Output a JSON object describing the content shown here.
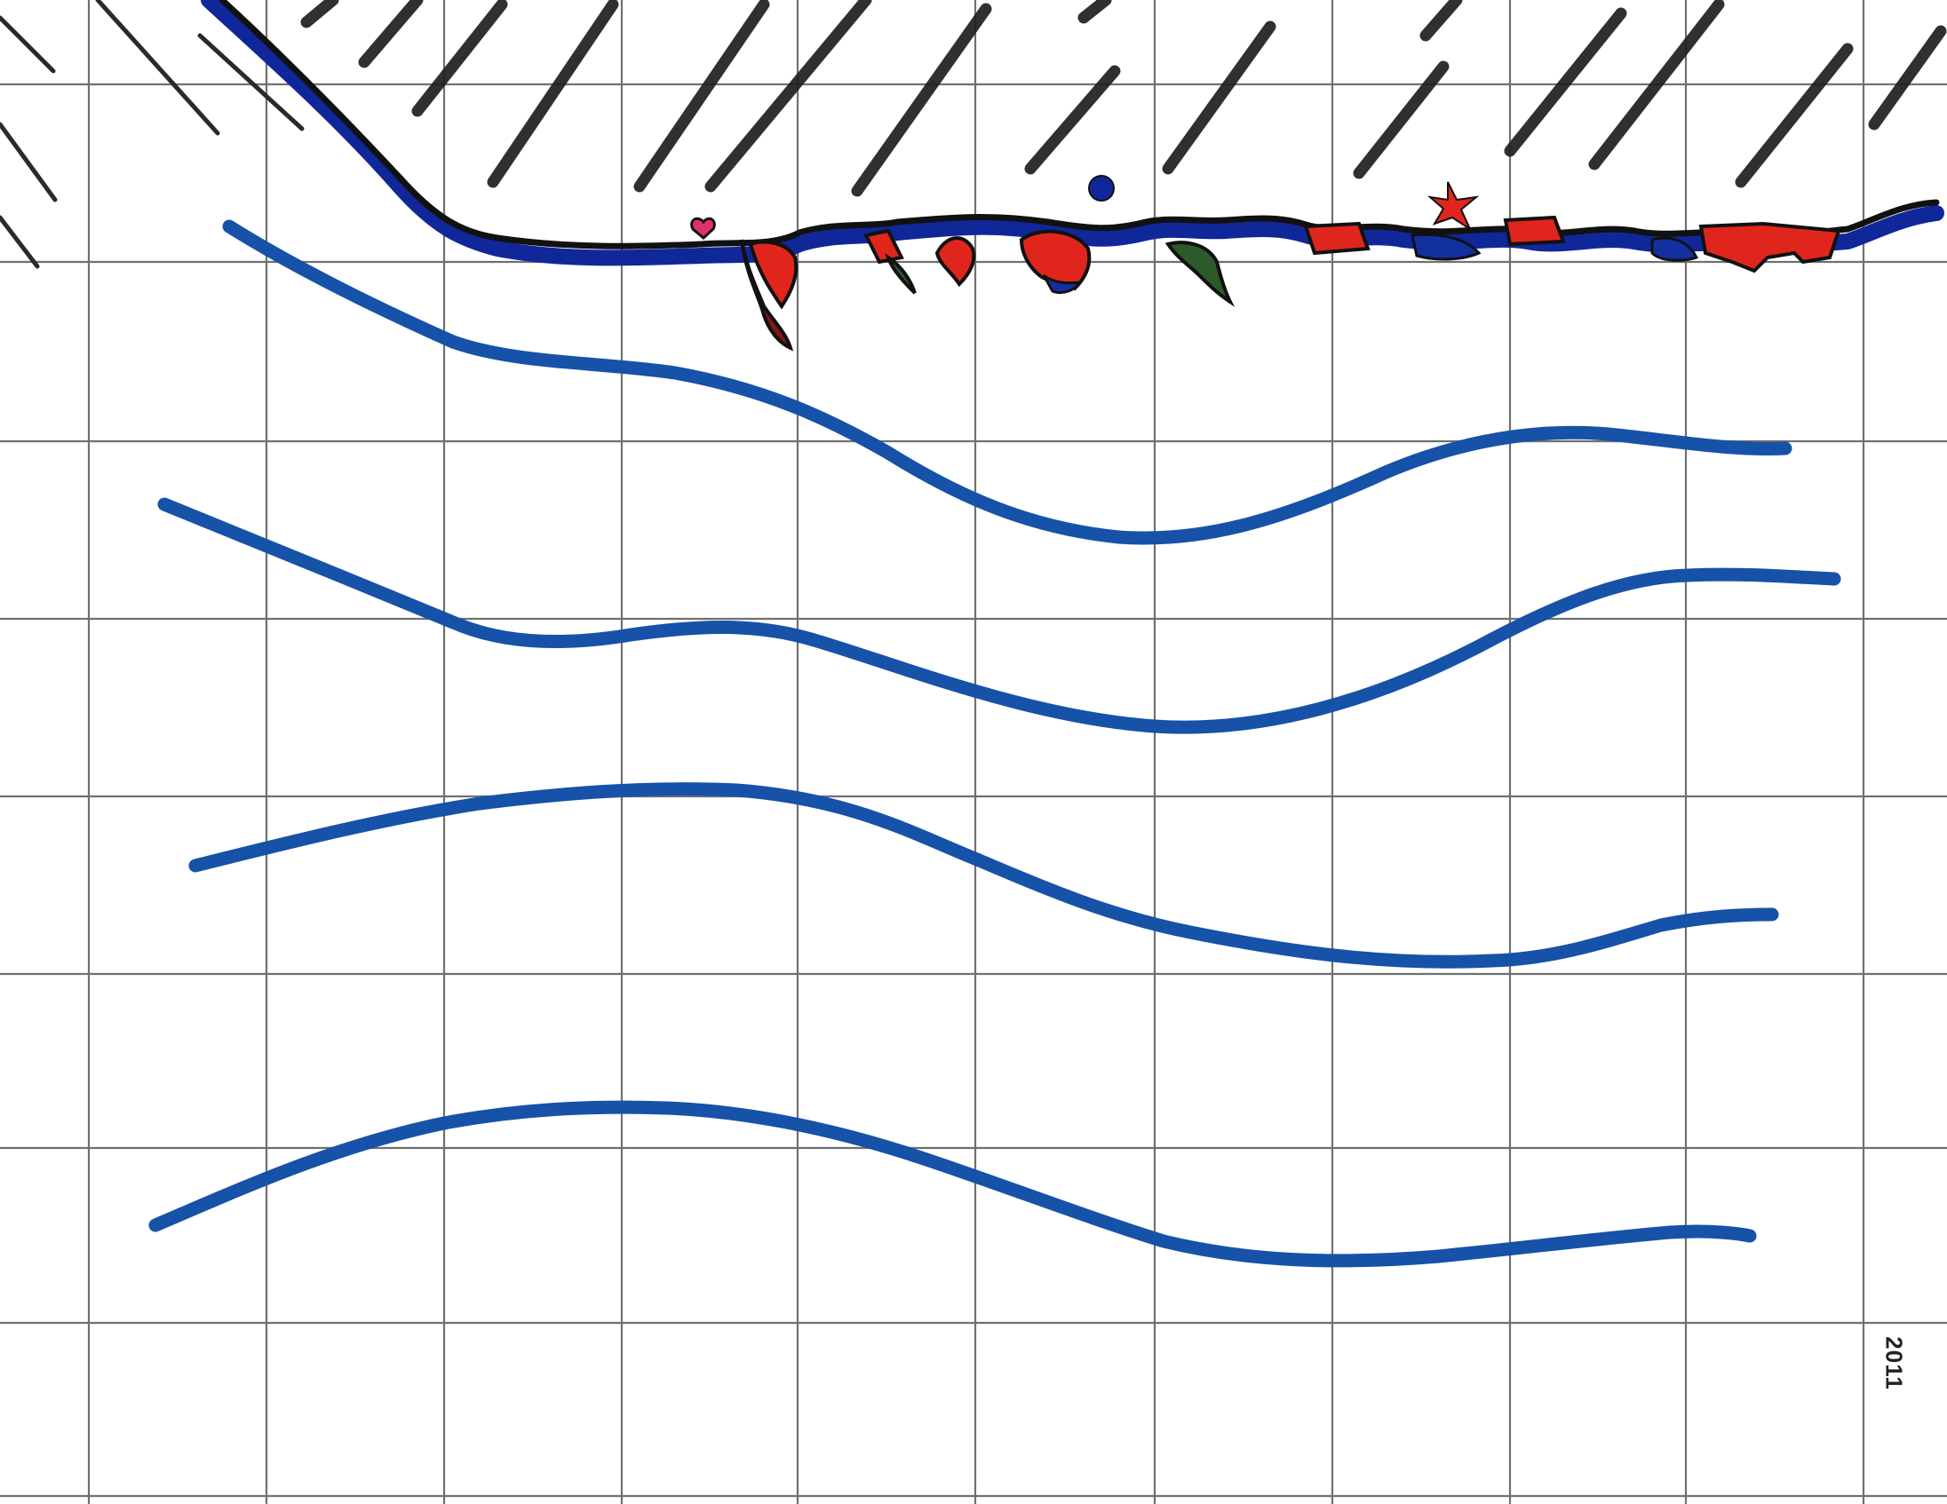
{
  "artwork": {
    "signature": "2011"
  },
  "colors": {
    "background": "#ffffff",
    "grid": "#707070",
    "hatching": "#1e1e1e",
    "wave_blue": "#1652a8",
    "shore_blue": "#10279a",
    "rock_red": "#e0261c",
    "pink": "#e0306a",
    "weed_green": "#2c5a2a"
  },
  "icons": {
    "pink_shape": "heart-icon",
    "red_shape": "star-icon",
    "blue_dot": "dot-icon"
  }
}
